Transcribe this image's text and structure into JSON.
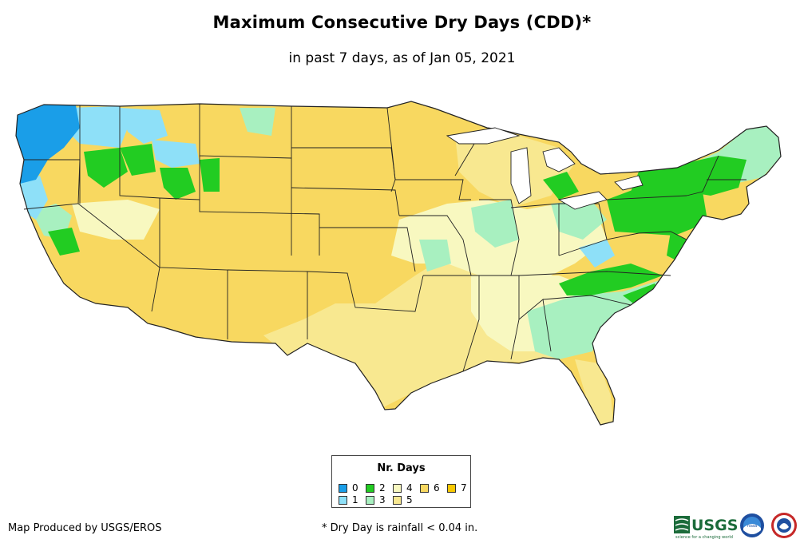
{
  "header": {
    "title": "Maximum Consecutive Dry Days (CDD)*",
    "subtitle": "in past 7 days, as of Jan 05, 2021"
  },
  "legend": {
    "title": "Nr. Days",
    "items": [
      {
        "label": "0",
        "color": "#1a9ee8"
      },
      {
        "label": "1",
        "color": "#8ee0f8"
      },
      {
        "label": "2",
        "color": "#22cc22"
      },
      {
        "label": "3",
        "color": "#a8f0c0"
      },
      {
        "label": "4",
        "color": "#f8f8c0"
      },
      {
        "label": "5",
        "color": "#f8e890"
      },
      {
        "label": "6",
        "color": "#f8d860"
      },
      {
        "label": "7",
        "color": "#f8c800"
      }
    ]
  },
  "footer": {
    "credit": "Map Produced by USGS/EROS",
    "footnote": "* Dry Day is rainfall < 0.04 in.",
    "logos": [
      "USGS",
      "NOAA",
      "National Weather Service"
    ]
  }
}
